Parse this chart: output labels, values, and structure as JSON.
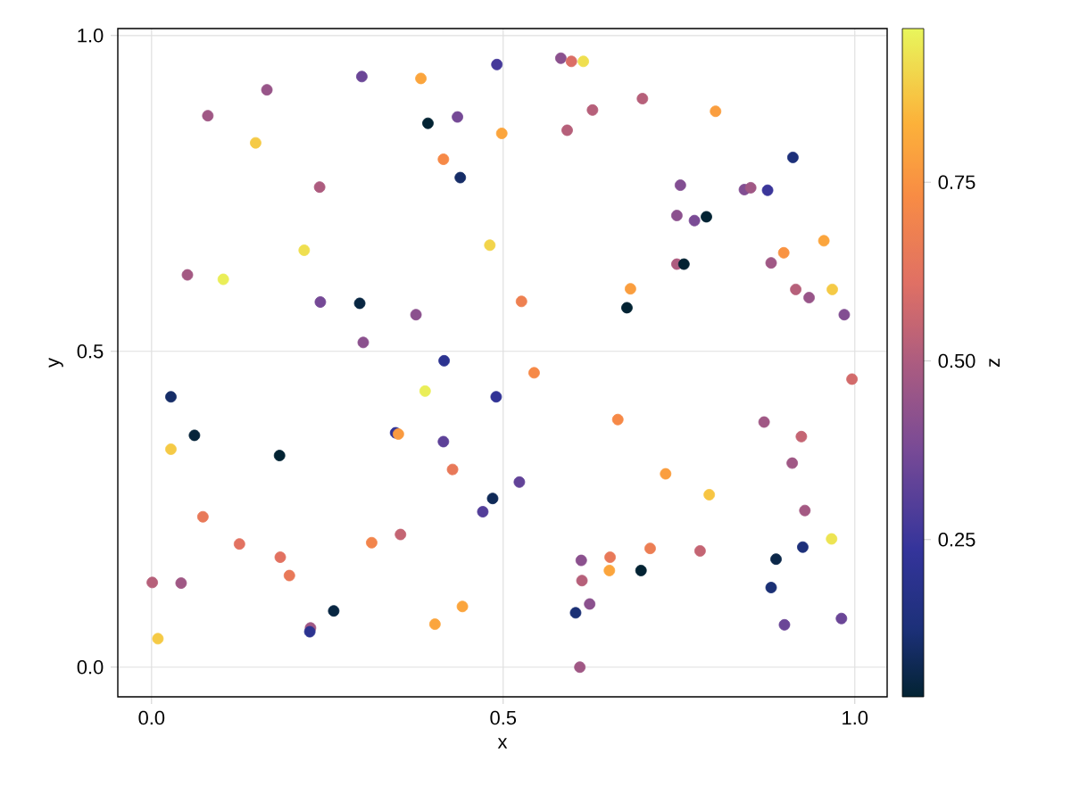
{
  "chart_data": {
    "type": "scatter",
    "xlabel": "x",
    "ylabel": "y",
    "clabel": "z",
    "x": [
      0.491,
      0.299,
      0.383,
      0.164,
      0.08,
      0.393,
      0.435,
      0.498,
      0.148,
      0.415,
      0.439,
      0.239,
      0.481,
      0.217,
      0.051,
      0.102,
      0.24,
      0.296,
      0.376,
      0.301,
      0.416,
      0.582,
      0.597,
      0.614,
      0.698,
      0.627,
      0.802,
      0.591,
      0.912,
      0.752,
      0.843,
      0.852,
      0.876,
      0.747,
      0.772,
      0.789,
      0.956,
      0.899,
      0.747,
      0.757,
      0.881,
      0.681,
      0.526,
      0.676,
      0.916,
      0.935,
      0.968,
      0.985,
      0.0275,
      0.389,
      0.49,
      0.061,
      0.0275,
      0.347,
      0.351,
      0.415,
      0.182,
      0.428,
      0.485,
      0.471,
      0.073,
      0.354,
      0.313,
      0.125,
      0.183,
      0.196,
      0.001,
      0.042,
      0.259,
      0.442,
      0.403,
      0.226,
      0.225,
      0.009,
      0.544,
      0.996,
      0.523,
      0.663,
      0.871,
      0.924,
      0.911,
      0.731,
      0.793,
      0.929,
      0.967,
      0.926,
      0.709,
      0.78,
      0.888,
      0.611,
      0.652,
      0.651,
      0.696,
      0.612,
      0.881,
      0.623,
      0.603,
      0.9,
      0.981,
      0.609
    ],
    "values": [
      0.954,
      0.935,
      0.932,
      0.914,
      0.873,
      0.861,
      0.871,
      0.845,
      0.83,
      0.804,
      0.775,
      0.76,
      0.668,
      0.66,
      0.621,
      0.614,
      0.578,
      0.576,
      0.558,
      0.514,
      0.485,
      0.964,
      0.959,
      0.959,
      0.9,
      0.882,
      0.88,
      0.85,
      0.807,
      0.763,
      0.756,
      0.759,
      0.755,
      0.715,
      0.707,
      0.713,
      0.675,
      0.656,
      0.638,
      0.638,
      0.64,
      0.599,
      0.579,
      0.569,
      0.598,
      0.585,
      0.598,
      0.558,
      0.428,
      0.437,
      0.428,
      0.367,
      0.345,
      0.371,
      0.369,
      0.357,
      0.335,
      0.313,
      0.267,
      0.246,
      0.238,
      0.21,
      0.197,
      0.195,
      0.174,
      0.145,
      0.134,
      0.133,
      0.089,
      0.096,
      0.068,
      0.062,
      0.056,
      0.045,
      0.466,
      0.456,
      0.293,
      0.392,
      0.388,
      0.365,
      0.323,
      0.306,
      0.273,
      0.248,
      0.203,
      0.19,
      0.188,
      0.184,
      0.171,
      0.169,
      0.174,
      0.153,
      0.153,
      0.137,
      0.126,
      0.1,
      0.086,
      0.067,
      0.077,
      0.0
    ],
    "cvalues": [
      0.27,
      0.35,
      0.8,
      0.45,
      0.47,
      0.03,
      0.37,
      0.8,
      0.88,
      0.72,
      0.1,
      0.5,
      0.9,
      0.92,
      0.48,
      0.95,
      0.37,
      0.05,
      0.42,
      0.42,
      0.2,
      0.42,
      0.6,
      0.92,
      0.52,
      0.52,
      0.78,
      0.52,
      0.13,
      0.4,
      0.4,
      0.47,
      0.25,
      0.42,
      0.38,
      0.03,
      0.8,
      0.75,
      0.5,
      0.03,
      0.47,
      0.78,
      0.68,
      0.03,
      0.52,
      0.45,
      0.88,
      0.4,
      0.1,
      0.95,
      0.22,
      0.04,
      0.88,
      0.22,
      0.77,
      0.32,
      0.03,
      0.65,
      0.08,
      0.3,
      0.65,
      0.55,
      0.7,
      0.62,
      0.62,
      0.65,
      0.52,
      0.47,
      0.05,
      0.8,
      0.8,
      0.47,
      0.2,
      0.88,
      0.72,
      0.58,
      0.33,
      0.72,
      0.47,
      0.55,
      0.47,
      0.78,
      0.87,
      0.48,
      0.93,
      0.13,
      0.67,
      0.55,
      0.06,
      0.42,
      0.65,
      0.8,
      0.03,
      0.52,
      0.12,
      0.42,
      0.12,
      0.35,
      0.35,
      0.47
    ],
    "xlim": [
      -0.048,
      1.046
    ],
    "ylim": [
      -0.047,
      1.011
    ],
    "xticks": [
      {
        "value": 0,
        "label": "0.0"
      },
      {
        "value": 0.5,
        "label": "0.5"
      },
      {
        "value": 1,
        "label": "1.0"
      }
    ],
    "yticks": [
      {
        "value": 0,
        "label": "0.0"
      },
      {
        "value": 0.5,
        "label": "0.5"
      },
      {
        "value": 1,
        "label": "1.0"
      }
    ],
    "clim": [
      0.03,
      0.965
    ],
    "cticks": [
      {
        "value": 0.25,
        "label": "0.25"
      },
      {
        "value": 0.5,
        "label": "0.50"
      },
      {
        "value": 0.75,
        "label": "0.75"
      }
    ],
    "grid": true,
    "marker": "circle"
  }
}
